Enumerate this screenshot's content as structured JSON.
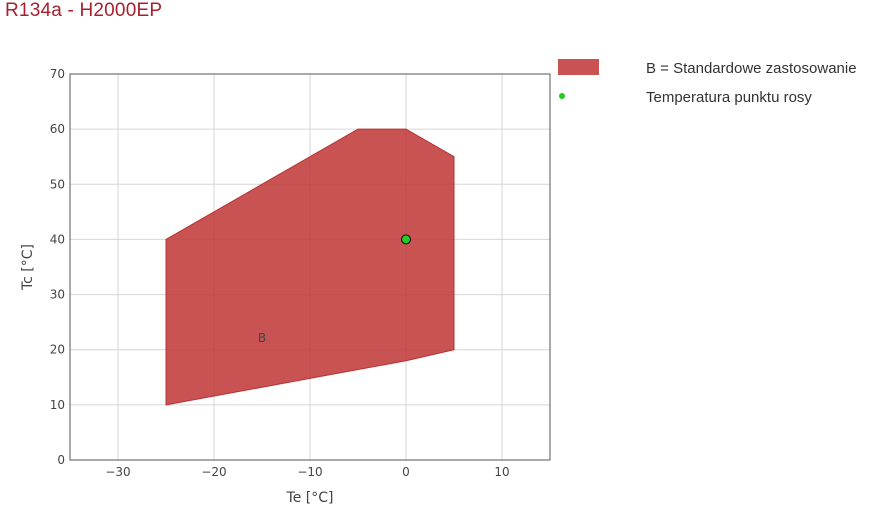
{
  "title": "R134a - H2000EP",
  "colors": {
    "title": "#a8202f",
    "region_fill": "#c23b3b",
    "dew_point": "#22cc22"
  },
  "chart_data": {
    "type": "area",
    "xlabel": "Te [°C]",
    "ylabel": "Tc [°C]",
    "xlim": [
      -35,
      15
    ],
    "ylim": [
      0,
      70
    ],
    "x_ticks": [
      -30,
      -20,
      -10,
      0,
      10
    ],
    "y_ticks": [
      0,
      10,
      20,
      30,
      40,
      50,
      60,
      70
    ],
    "grid": true,
    "legend_position": "right",
    "series": [
      {
        "name": "B = Standardowe zastosowanie",
        "type": "polygon",
        "label": "B",
        "label_point": {
          "x": -15,
          "y": 22
        },
        "points": [
          {
            "x": -25,
            "y": 10
          },
          {
            "x": -25,
            "y": 40
          },
          {
            "x": -5,
            "y": 60
          },
          {
            "x": 0,
            "y": 60
          },
          {
            "x": 5,
            "y": 55
          },
          {
            "x": 5,
            "y": 20
          },
          {
            "x": 0,
            "y": 18
          }
        ]
      },
      {
        "name": "Temperatura punktu rosy",
        "type": "scatter",
        "points": [
          {
            "x": 0,
            "y": 40
          }
        ]
      }
    ]
  }
}
